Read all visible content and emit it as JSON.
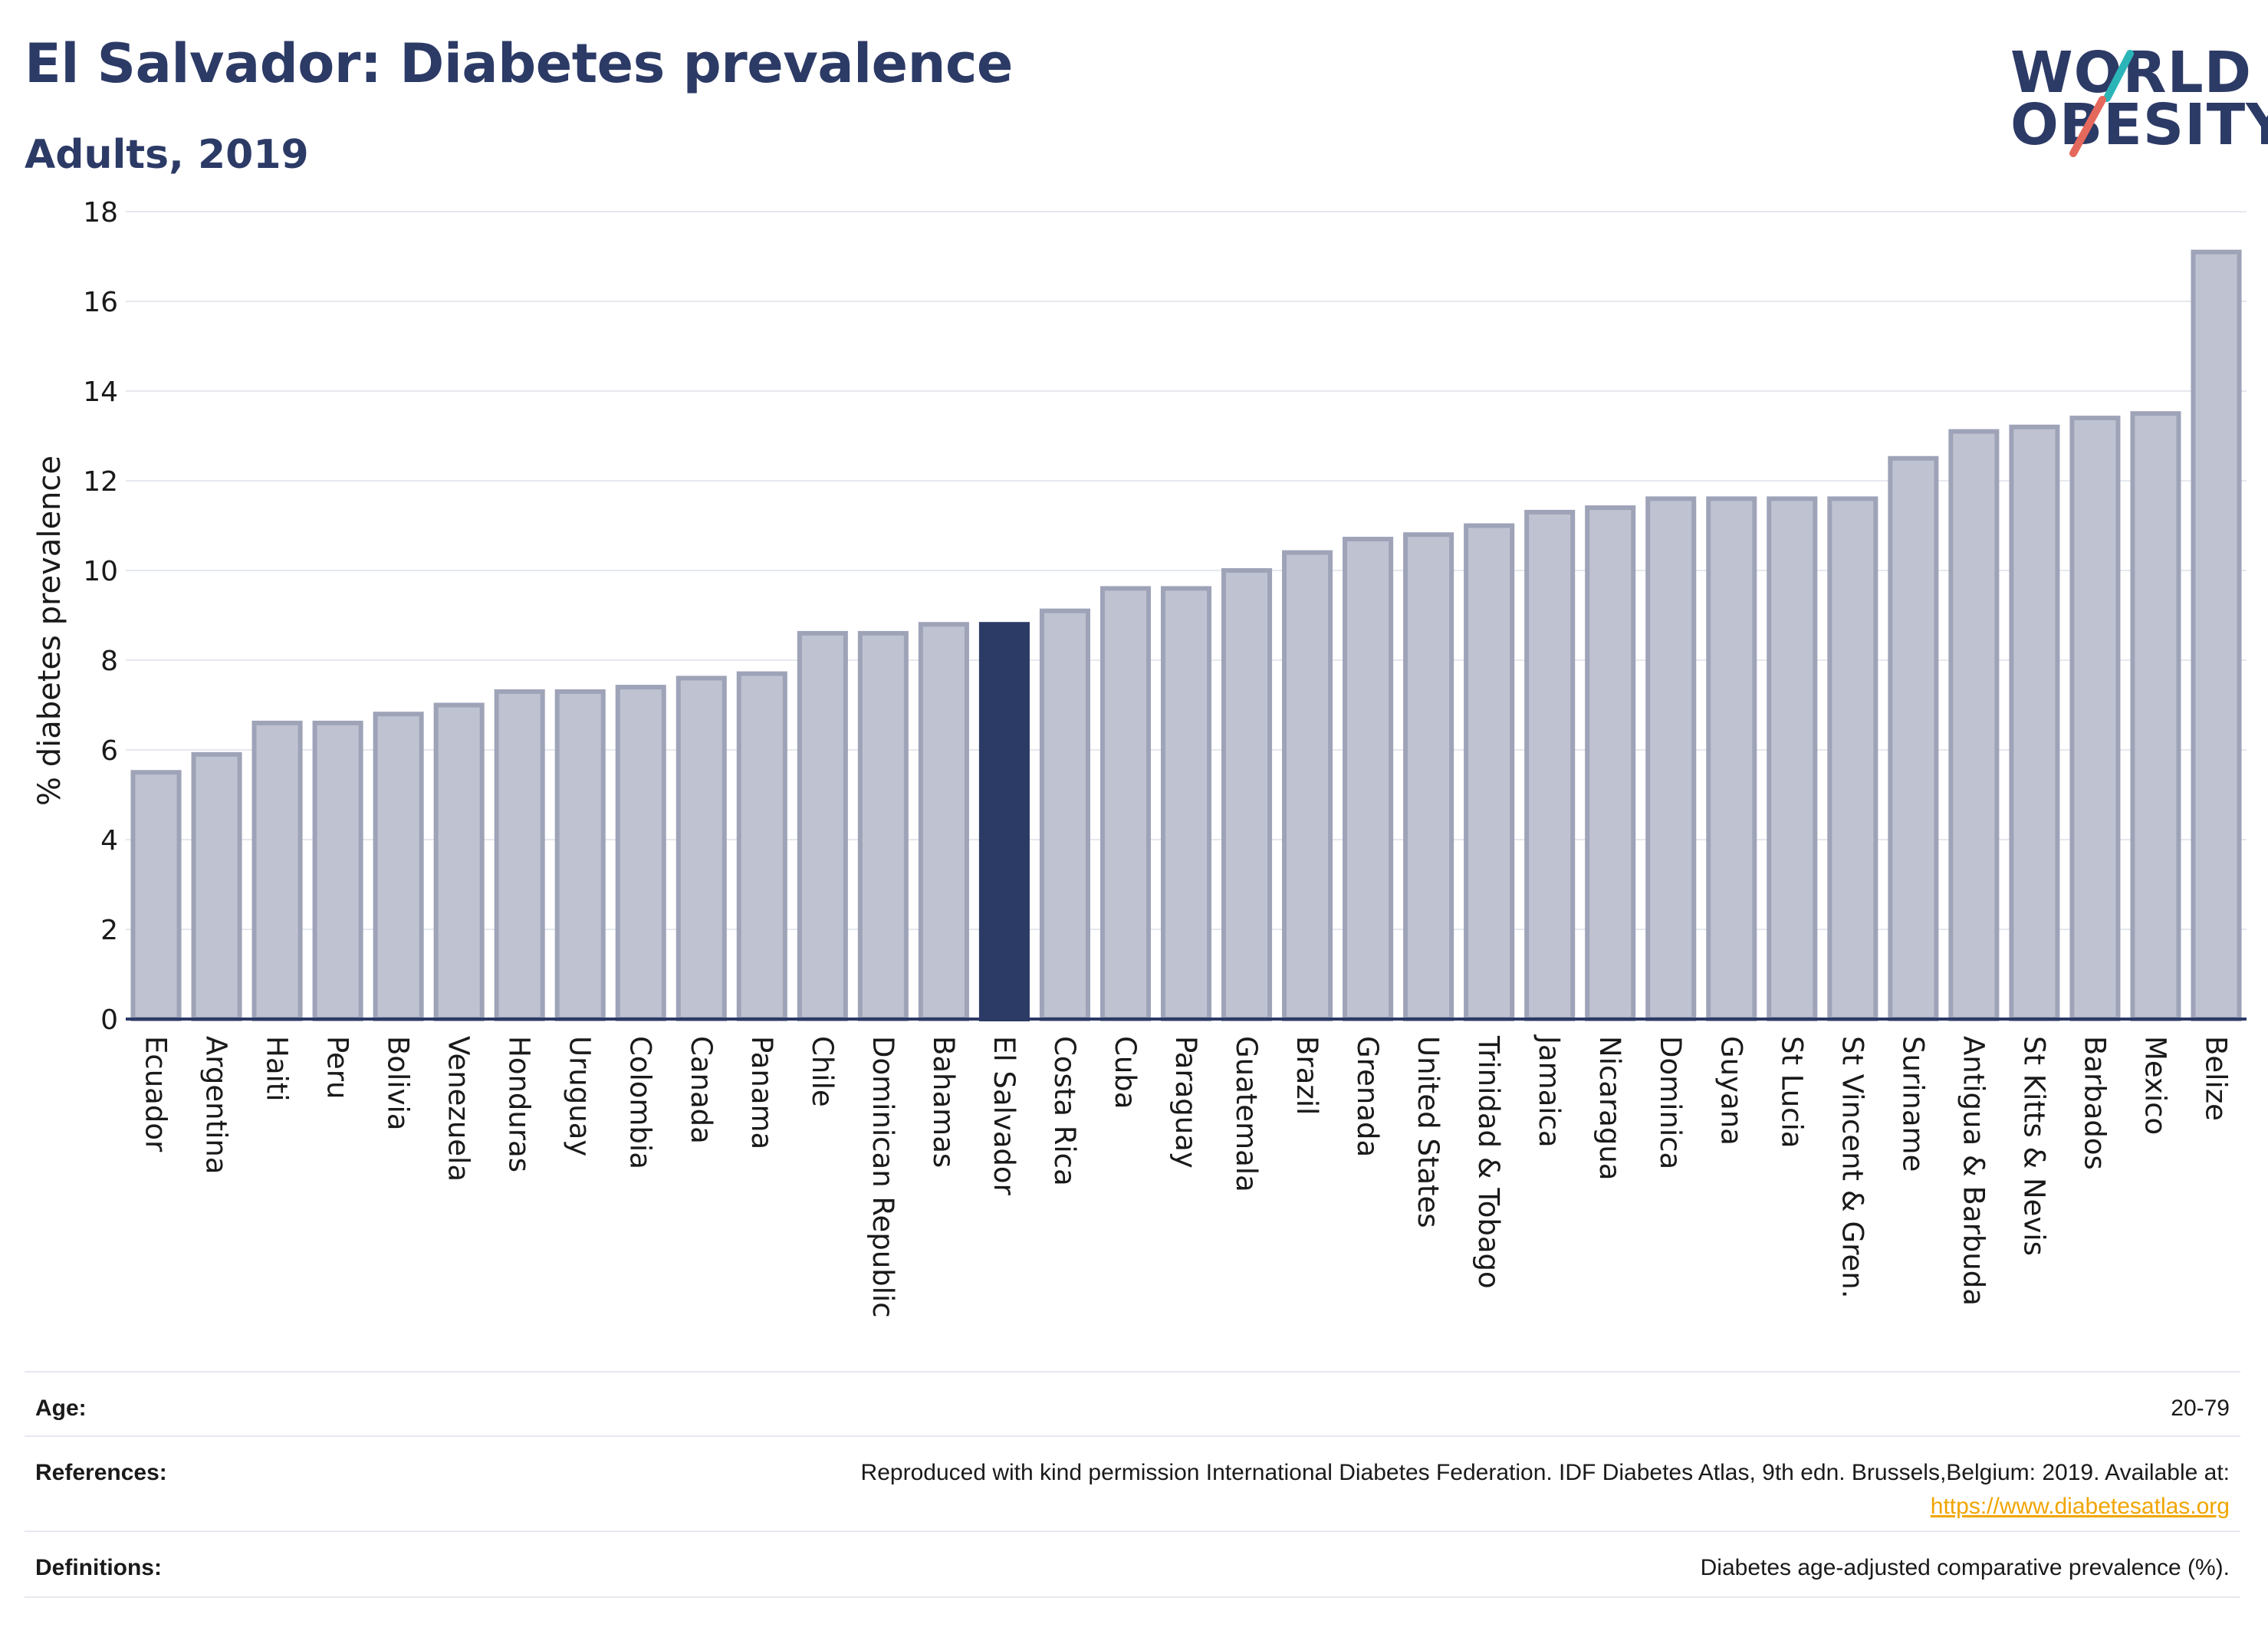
{
  "header": {
    "title": "El Salvador: Diabetes prevalence",
    "subtitle": "Adults, 2019"
  },
  "logo": {
    "line1": "WORLD",
    "line2": "OBESITY",
    "slash_top_color": "#2bb5b8",
    "slash_bottom_color": "#e5685c"
  },
  "chart_data": {
    "type": "bar",
    "ylabel": "% diabetes prevalence",
    "xlabel": "",
    "ylim": [
      0,
      18
    ],
    "yticks": [
      0,
      2,
      4,
      6,
      8,
      10,
      12,
      14,
      16,
      18
    ],
    "grid": true,
    "categories": [
      "Ecuador",
      "Argentina",
      "Haiti",
      "Peru",
      "Bolivia",
      "Venezuela",
      "Honduras",
      "Uruguay",
      "Colombia",
      "Canada",
      "Panama",
      "Chile",
      "Dominican Republic",
      "Bahamas",
      "El Salvador",
      "Costa Rica",
      "Cuba",
      "Paraguay",
      "Guatemala",
      "Brazil",
      "Grenada",
      "United States",
      "Trinidad & Tobago",
      "Jamaica",
      "Nicaragua",
      "Dominica",
      "Guyana",
      "St Lucia",
      "St Vincent & Gren.",
      "Suriname",
      "Antigua & Barbuda",
      "St Kitts & Nevis",
      "Barbados",
      "Mexico",
      "Belize"
    ],
    "values": [
      5.5,
      5.9,
      6.6,
      6.6,
      6.8,
      7.0,
      7.3,
      7.3,
      7.4,
      7.6,
      7.7,
      8.6,
      8.6,
      8.8,
      8.8,
      9.1,
      9.6,
      9.6,
      10.0,
      10.4,
      10.7,
      10.8,
      11.0,
      11.3,
      11.4,
      11.6,
      11.6,
      11.6,
      11.6,
      12.5,
      13.1,
      13.2,
      13.4,
      13.5,
      17.1
    ],
    "highlight": "El Salvador",
    "colors": {
      "bar": "#bfc3d1",
      "bar_border": "#9ea3b8",
      "highlight": "#2c3a66",
      "axis": "#2c3a66",
      "grid": "#e6e8ee"
    }
  },
  "meta": {
    "age_label": "Age:",
    "age_value": "20-79",
    "references_label": "References:",
    "references_text": "Reproduced with kind permission International Diabetes Federation. IDF Diabetes Atlas, 9th edn. Brussels,Belgium: 2019. Available at:",
    "references_link": "https://www.diabetesatlas.org",
    "definitions_label": "Definitions:",
    "definitions_value": "Diabetes age-adjusted comparative prevalence (%)."
  }
}
